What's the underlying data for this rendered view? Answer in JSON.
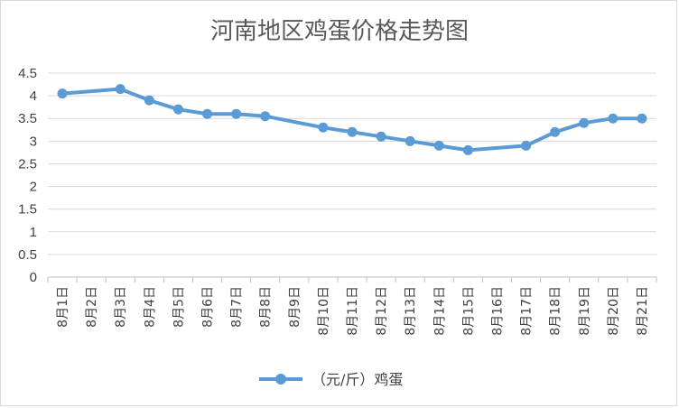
{
  "chart_data": {
    "type": "line",
    "title": "河南地区鸡蛋价格走势图",
    "categories": [
      "8月1日",
      "8月2日",
      "8月3日",
      "8月4日",
      "8月5日",
      "8月6日",
      "8月7日",
      "8月8日",
      "8月9日",
      "8月10日",
      "8月11日",
      "8月12日",
      "8月13日",
      "8月14日",
      "8月15日",
      "8月16日",
      "8月17日",
      "8月18日",
      "8月19日",
      "8月20日",
      "8月21日"
    ],
    "series": [
      {
        "name": "（元/斤）鸡蛋",
        "color": "#5b9bd5",
        "values": [
          4.05,
          null,
          4.15,
          3.9,
          3.7,
          3.6,
          3.6,
          3.55,
          null,
          3.3,
          3.2,
          3.1,
          3.0,
          2.9,
          2.8,
          null,
          2.9,
          3.2,
          3.4,
          3.5,
          3.5
        ]
      }
    ],
    "y_ticks": [
      "0",
      "0.5",
      "1",
      "1.5",
      "2",
      "2.5",
      "3",
      "3.5",
      "4",
      "4.5"
    ],
    "ylim": [
      0,
      4.5
    ],
    "grid": true,
    "gridline_color": "#d9d9d9",
    "legend_position": "bottom",
    "xlabel": "",
    "ylabel": ""
  }
}
